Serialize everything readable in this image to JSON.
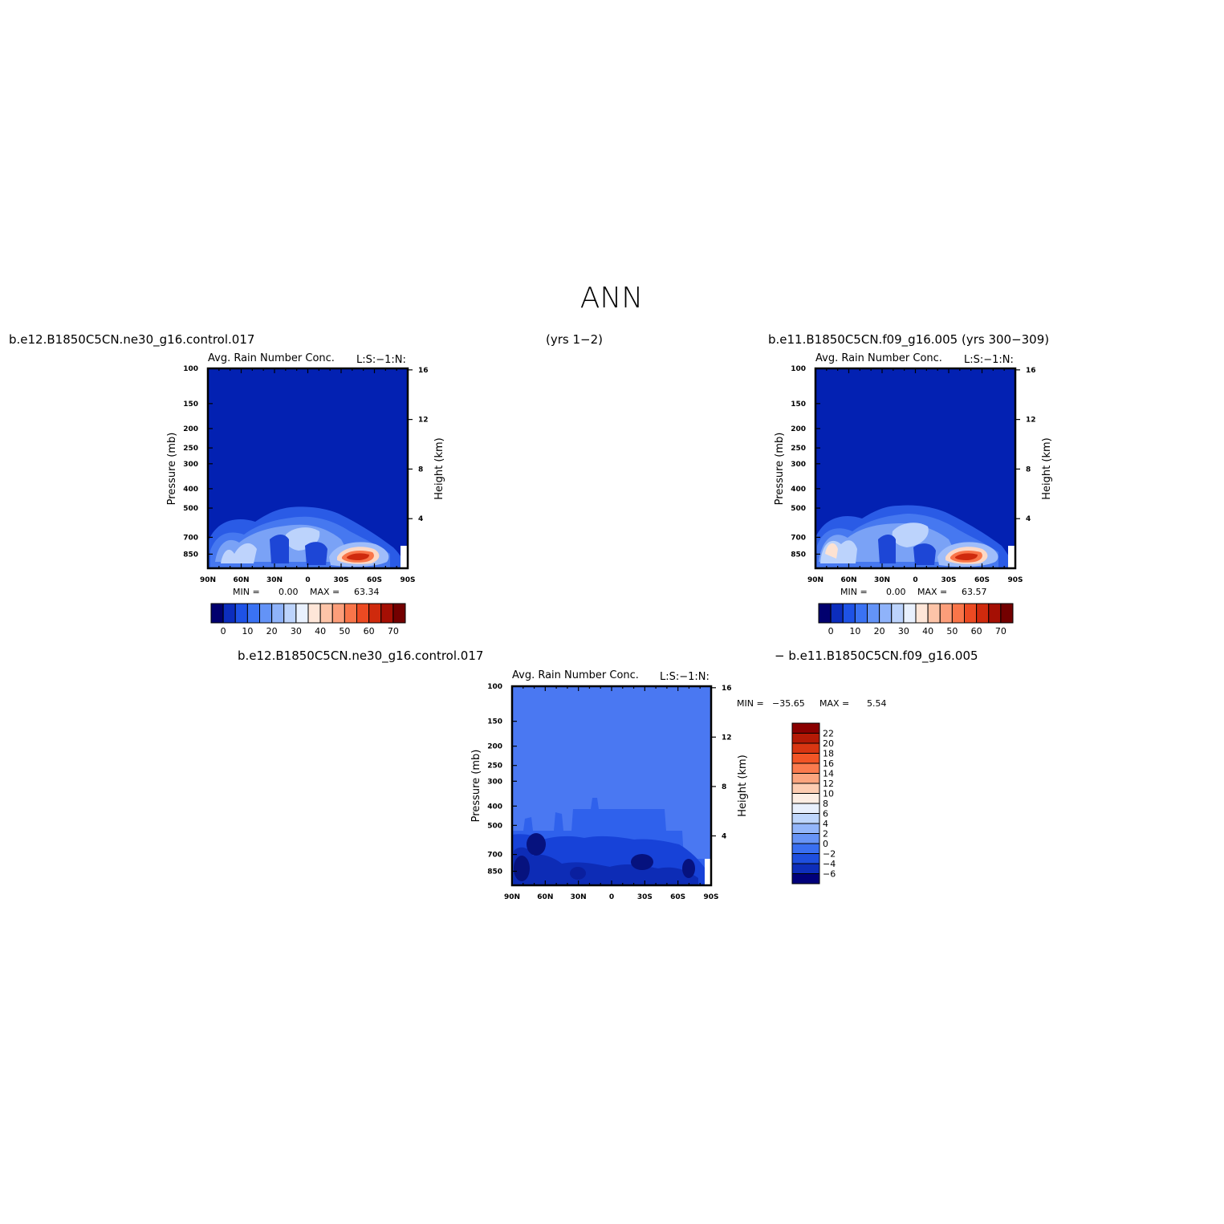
{
  "figure": {
    "main_title": "ANN",
    "top_left_case": "b.e12.B1850C5CN.ne30_g16.control.017",
    "top_left_years": "(yrs 1−2)",
    "top_right_case": "b.e11.B1850C5CN.f09_g16.005 (yrs 300−309)",
    "diff_case_a": "b.e12.B1850C5CN.ne30_g16.control.017",
    "diff_case_b": "−  b.e11.B1850C5CN.f09_g16.005"
  },
  "chart_data": [
    {
      "type": "heatmap",
      "title": "Avg. Rain Number Conc.",
      "subtitle": "L:S:−1:N:",
      "ylabel": "Pressure (mb)",
      "ylabel_right": "Height (km)",
      "x_ticks": [
        "90N",
        "60N",
        "30N",
        "0",
        "30S",
        "60S",
        "90S"
      ],
      "y_ticks": [
        "100",
        "150",
        "200",
        "250",
        "300",
        "400",
        "500",
        "700",
        "850"
      ],
      "y_ticks_right": [
        "16",
        "12",
        "8",
        "4"
      ],
      "ylim": [
        100,
        1000
      ],
      "min_label": "MIN =",
      "min_value": "0.00",
      "max_label": "MAX =",
      "max_value": "63.34",
      "colorbar": {
        "labels": [
          "0",
          "10",
          "20",
          "30",
          "40",
          "50",
          "60",
          "70"
        ],
        "colors": [
          "#01006e",
          "#0c2dbd",
          "#1e52e6",
          "#3a72f3",
          "#6393f7",
          "#8fb3fa",
          "#bcd3fc",
          "#e9f1fe",
          "#fee6d8",
          "#fdc4a8",
          "#fc9e7a",
          "#f97549",
          "#ec4a22",
          "#cf2a0d",
          "#a50f04",
          "#730000"
        ]
      }
    },
    {
      "type": "heatmap",
      "title": "Avg. Rain Number Conc.",
      "subtitle": "L:S:−1:N:",
      "ylabel": "Pressure (mb)",
      "ylabel_right": "Height (km)",
      "x_ticks": [
        "90N",
        "60N",
        "30N",
        "0",
        "30S",
        "60S",
        "90S"
      ],
      "y_ticks": [
        "100",
        "150",
        "200",
        "250",
        "300",
        "400",
        "500",
        "700",
        "850"
      ],
      "y_ticks_right": [
        "16",
        "12",
        "8",
        "4"
      ],
      "ylim": [
        100,
        1000
      ],
      "min_label": "MIN =",
      "min_value": "0.00",
      "max_label": "MAX =",
      "max_value": "63.57",
      "colorbar": {
        "labels": [
          "0",
          "10",
          "20",
          "30",
          "40",
          "50",
          "60",
          "70"
        ],
        "colors": [
          "#01006e",
          "#0c2dbd",
          "#1e52e6",
          "#3a72f3",
          "#6393f7",
          "#8fb3fa",
          "#bcd3fc",
          "#e9f1fe",
          "#fee6d8",
          "#fdc4a8",
          "#fc9e7a",
          "#f97549",
          "#ec4a22",
          "#cf2a0d",
          "#a50f04",
          "#730000"
        ]
      }
    },
    {
      "type": "heatmap",
      "title": "Avg. Rain Number Conc.",
      "subtitle": "L:S:−1:N:",
      "ylabel": "Pressure (mb)",
      "ylabel_right": "Height (km)",
      "x_ticks": [
        "90N",
        "60N",
        "30N",
        "0",
        "30S",
        "60S",
        "90S"
      ],
      "y_ticks": [
        "100",
        "150",
        "200",
        "250",
        "300",
        "400",
        "500",
        "700",
        "850"
      ],
      "y_ticks_right": [
        "16",
        "12",
        "8",
        "4"
      ],
      "ylim": [
        100,
        1000
      ],
      "min_label": "MIN =",
      "min_value": "−35.65",
      "max_label": "MAX =",
      "max_value": "5.54",
      "colorbar": {
        "labels": [
          "22",
          "20",
          "18",
          "16",
          "14",
          "12",
          "10",
          "8",
          "6",
          "4",
          "2",
          "0",
          "−2",
          "−4",
          "−6"
        ],
        "colors": [
          "#8a0000",
          "#b41a06",
          "#d83612",
          "#f25526",
          "#fb7b4e",
          "#fca57f",
          "#fdcdb2",
          "#fdeee4",
          "#e8f0fd",
          "#bed6fc",
          "#93b6fa",
          "#6794f6",
          "#3a6ff1",
          "#1f4fde",
          "#0e2eba",
          "#01007a"
        ]
      }
    }
  ]
}
